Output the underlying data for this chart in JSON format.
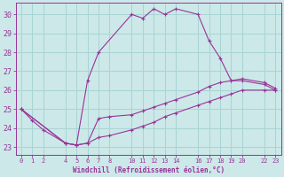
{
  "xlabel": "Windchill (Refroidissement éolien,°C)",
  "bg_color": "#cce8e8",
  "grid_color": "#a8d4d4",
  "line_color": "#993399",
  "xlim": [
    -0.5,
    23.5
  ],
  "ylim": [
    22.6,
    30.6
  ],
  "xticks": [
    0,
    1,
    2,
    4,
    5,
    6,
    7,
    8,
    10,
    11,
    12,
    13,
    14,
    16,
    17,
    18,
    19,
    20,
    22,
    23
  ],
  "yticks": [
    23,
    24,
    25,
    26,
    27,
    28,
    29,
    30
  ],
  "series1_x": [
    0,
    1,
    2,
    4,
    5,
    6,
    7,
    10,
    11,
    12,
    13,
    14,
    16,
    17,
    18,
    19,
    20,
    22,
    23
  ],
  "series1_y": [
    25.0,
    24.4,
    23.9,
    23.2,
    23.1,
    26.5,
    28.0,
    30.0,
    29.8,
    30.3,
    30.0,
    30.3,
    30.0,
    28.6,
    27.7,
    26.5,
    26.5,
    26.3,
    26.0
  ],
  "series2_x": [
    0,
    4,
    5,
    6,
    7,
    8,
    10,
    11,
    12,
    13,
    14,
    16,
    17,
    18,
    19,
    20,
    22,
    23
  ],
  "series2_y": [
    25.0,
    23.2,
    23.1,
    23.2,
    24.5,
    24.6,
    24.7,
    24.9,
    25.1,
    25.3,
    25.5,
    25.9,
    26.2,
    26.4,
    26.5,
    26.6,
    26.4,
    26.1
  ],
  "series3_x": [
    0,
    4,
    5,
    6,
    7,
    8,
    10,
    11,
    12,
    13,
    14,
    16,
    17,
    18,
    19,
    20,
    22,
    23
  ],
  "series3_y": [
    25.0,
    23.2,
    23.1,
    23.2,
    23.5,
    23.6,
    23.9,
    24.1,
    24.3,
    24.6,
    24.8,
    25.2,
    25.4,
    25.6,
    25.8,
    26.0,
    26.0,
    26.0
  ]
}
